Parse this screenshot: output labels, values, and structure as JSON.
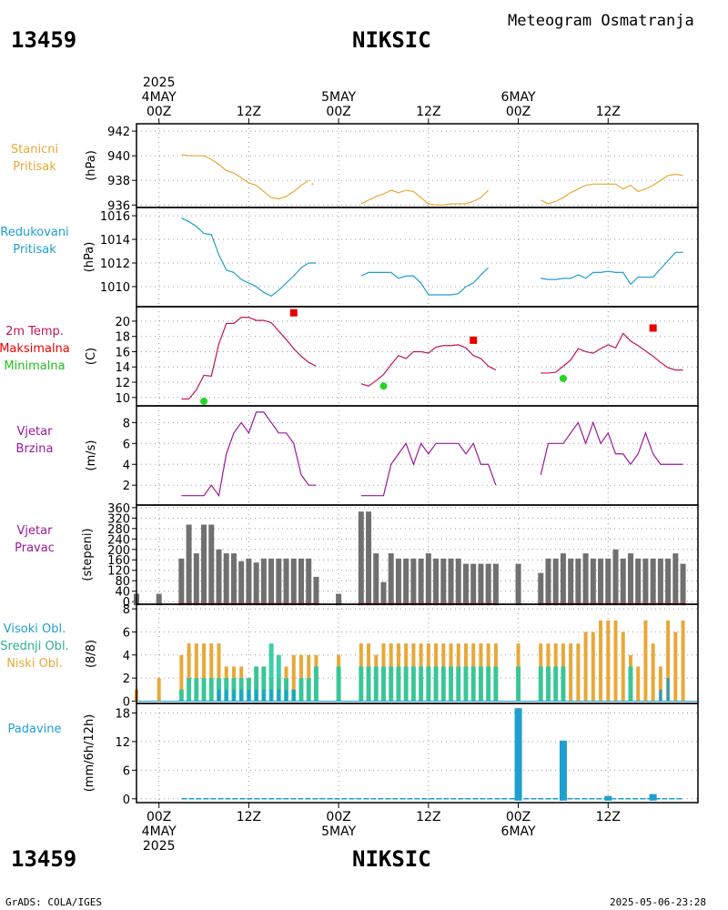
{
  "header": {
    "station_id": "13459",
    "station_name": "NIKSIC",
    "meteogram_title": "Meteogram Osmatranja"
  },
  "footer": {
    "station_id": "13459",
    "station_name": "NIKSIC",
    "credit": "GrADS: COLA/IGES",
    "timestamp": "2025-05-06-23:28"
  },
  "time_axis": {
    "top_labels": [
      {
        "hour": 0,
        "lines": [
          "2025",
          "4MAY",
          "00Z"
        ]
      },
      {
        "hour": 12,
        "lines": [
          "12Z"
        ]
      },
      {
        "hour": 24,
        "lines": [
          "5MAY",
          "00Z"
        ]
      },
      {
        "hour": 36,
        "lines": [
          "12Z"
        ]
      },
      {
        "hour": 48,
        "lines": [
          "6MAY",
          "00Z"
        ]
      },
      {
        "hour": 60,
        "lines": [
          "12Z"
        ]
      }
    ],
    "bottom_labels": [
      {
        "hour": 0,
        "lines": [
          "00Z",
          "4MAY",
          "2025"
        ]
      },
      {
        "hour": 12,
        "lines": [
          "12Z"
        ]
      },
      {
        "hour": 24,
        "lines": [
          "00Z",
          "5MAY"
        ]
      },
      {
        "hour": 36,
        "lines": [
          "12Z"
        ]
      },
      {
        "hour": 48,
        "lines": [
          "00Z",
          "6MAY"
        ]
      },
      {
        "hour": 60,
        "lines": [
          "12Z"
        ]
      }
    ]
  },
  "colors": {
    "station_pressure": "#e8a838",
    "reduced_pressure": "#1e9fcf",
    "temperature": "#c0145a",
    "tmax": "#e80000",
    "tmin": "#22d622",
    "wind": "#9a189a",
    "direction_bar": "#707070",
    "high_cloud": "#1e9fcf",
    "mid_cloud": "#28c8a0",
    "low_cloud": "#e8a838",
    "precip": "#1e9fcf"
  },
  "panels": {
    "station_pressure": {
      "labels": [
        "Stanicni",
        "Pritisak"
      ],
      "unit": "(hPa)"
    },
    "reduced_pressure": {
      "labels": [
        "Redukovani",
        "Pritisak"
      ],
      "unit": "(hPa)"
    },
    "temperature": {
      "labels": [
        "2m Temp.",
        "Maksimalna",
        "Minimalna"
      ],
      "unit": "(C)"
    },
    "wind_speed": {
      "labels": [
        "Vjetar",
        "Brzina"
      ],
      "unit": "(m/s)"
    },
    "wind_dir": {
      "labels": [
        "Vjetar",
        "Pravac"
      ],
      "unit": "(stepeni)"
    },
    "clouds": {
      "labels": [
        "Visoki Obl.",
        "Srednji Obl.",
        "Niski Obl."
      ],
      "unit": "(8/8)"
    },
    "precip": {
      "labels": [
        "Padavine"
      ],
      "unit": "(mm/6h/12h)"
    }
  },
  "chart_data": [
    {
      "type": "line",
      "id": "station_pressure",
      "title": "Stanicni Pritisak",
      "ylabel": "(hPa)",
      "ylim": [
        935.8,
        942.6
      ],
      "yticks": [
        936,
        938,
        940,
        942
      ],
      "segments": [
        {
          "x": [
            3,
            4,
            5,
            6,
            7,
            8,
            9,
            10,
            11,
            12,
            13,
            14,
            15,
            16,
            17,
            18,
            19,
            20
          ],
          "y": [
            940.1,
            940.0,
            940.0,
            940.0,
            939.7,
            939.3,
            938.8,
            938.6,
            938.2,
            937.8,
            937.6,
            937.1,
            936.6,
            936.5,
            936.7,
            937.1,
            937.6,
            938.0
          ]
        },
        {
          "x": [
            20.5
          ],
          "y": [
            937.7
          ]
        },
        {
          "x": [
            27,
            28,
            29,
            30,
            31,
            32,
            33,
            34,
            35,
            36,
            37,
            38,
            39,
            40,
            41,
            42,
            43,
            44
          ],
          "y": [
            936.1,
            936.4,
            936.7,
            936.9,
            937.2,
            937.0,
            937.2,
            937.1,
            936.6,
            936.1,
            936.0,
            936.0,
            936.1,
            936.1,
            936.1,
            936.3,
            936.6,
            937.2
          ]
        },
        {
          "x": [
            51,
            52,
            53,
            54,
            55,
            56,
            57,
            58,
            59,
            60,
            61,
            62,
            63,
            64,
            65,
            66,
            67,
            68,
            69,
            70
          ],
          "y": [
            936.4,
            936.1,
            936.3,
            936.6,
            937.0,
            937.3,
            937.6,
            937.7,
            937.7,
            937.7,
            937.7,
            937.3,
            937.6,
            937.1,
            937.3,
            937.6,
            938.0,
            938.4,
            938.5,
            938.4
          ]
        }
      ]
    },
    {
      "type": "line",
      "id": "reduced_pressure",
      "title": "Redukovani Pritisak",
      "ylabel": "(hPa)",
      "ylim": [
        1008.3,
        1016.7
      ],
      "yticks": [
        1010,
        1012,
        1014,
        1016
      ],
      "segments": [
        {
          "x": [
            3,
            4,
            5,
            6,
            7,
            8,
            9,
            10,
            11,
            12,
            13,
            14,
            15,
            16,
            17,
            18,
            19,
            20,
            21
          ],
          "y": [
            1015.8,
            1015.5,
            1015.1,
            1014.5,
            1014.4,
            1012.7,
            1011.4,
            1011.2,
            1010.6,
            1010.3,
            1010.0,
            1009.5,
            1009.2,
            1009.7,
            1010.3,
            1010.9,
            1011.6,
            1012.0,
            1012.0
          ]
        },
        {
          "x": [
            27,
            28,
            29,
            30,
            31,
            32,
            33,
            34,
            35,
            36,
            37,
            38,
            39,
            40,
            41,
            42,
            43,
            44
          ],
          "y": [
            1010.9,
            1011.2,
            1011.2,
            1011.2,
            1011.2,
            1010.7,
            1010.9,
            1010.9,
            1010.3,
            1009.3,
            1009.3,
            1009.3,
            1009.3,
            1009.4,
            1010.0,
            1010.3,
            1011.0,
            1011.6
          ]
        },
        {
          "x": [
            51,
            52,
            53,
            54,
            55,
            56,
            57,
            58,
            59,
            60,
            61,
            62,
            63,
            64,
            65,
            66,
            67,
            68,
            69,
            70
          ],
          "y": [
            1010.7,
            1010.6,
            1010.6,
            1010.7,
            1010.7,
            1011.0,
            1010.7,
            1011.2,
            1011.2,
            1011.3,
            1011.2,
            1011.2,
            1010.2,
            1010.8,
            1010.8,
            1010.8,
            1011.5,
            1012.2,
            1012.9,
            1012.9
          ]
        }
      ]
    },
    {
      "type": "line",
      "id": "temperature",
      "title": "2m Temp. Maksimalna Minimalna",
      "ylabel": "(C)",
      "ylim": [
        8.9,
        21.9
      ],
      "yticks": [
        10,
        12,
        14,
        16,
        18,
        20
      ],
      "segments": [
        {
          "x": [
            3,
            4,
            5,
            6,
            7,
            8,
            9,
            10,
            11,
            12,
            13,
            14,
            15,
            16,
            17,
            18,
            19,
            20,
            21
          ],
          "y": [
            9.8,
            9.8,
            11.0,
            12.9,
            12.8,
            17.0,
            19.7,
            19.7,
            20.5,
            20.5,
            20.1,
            20.1,
            19.8,
            18.7,
            17.6,
            16.4,
            15.4,
            14.6,
            14.1
          ]
        },
        {
          "x": [
            27,
            28,
            29,
            30,
            31,
            32,
            33,
            34,
            35,
            36,
            37,
            38,
            39,
            40,
            41,
            42,
            43,
            44,
            45
          ],
          "y": [
            11.8,
            11.5,
            12.2,
            13.0,
            14.3,
            15.5,
            15.1,
            16.0,
            16.0,
            15.8,
            16.6,
            16.8,
            16.8,
            16.9,
            16.5,
            15.5,
            15.1,
            14.1,
            13.6
          ]
        },
        {
          "x": [
            51,
            52,
            53,
            54,
            55,
            56,
            57,
            58,
            59,
            60,
            61,
            62,
            63,
            64,
            65,
            66,
            67,
            68,
            69,
            70
          ],
          "y": [
            13.2,
            13.2,
            13.3,
            14.1,
            14.9,
            16.4,
            16.0,
            15.8,
            16.4,
            16.9,
            16.5,
            18.4,
            17.4,
            16.8,
            16.1,
            15.4,
            14.6,
            13.9,
            13.6,
            13.6
          ]
        }
      ],
      "tmax": {
        "x": [
          18,
          42,
          66
        ],
        "y": [
          21.1,
          17.5,
          19.1
        ]
      },
      "tmin": {
        "x": [
          6,
          30,
          54
        ],
        "y": [
          9.5,
          11.5,
          12.5
        ]
      }
    },
    {
      "type": "line",
      "id": "wind_speed",
      "title": "Vjetar Brzina",
      "ylabel": "(m/s)",
      "ylim": [
        0.1,
        9.6
      ],
      "yticks": [
        2,
        4,
        6,
        8
      ],
      "segments": [
        {
          "x": [
            3,
            4,
            5,
            6,
            7,
            8,
            9,
            10,
            11,
            12,
            13,
            14,
            15,
            16,
            17,
            18,
            19,
            20,
            21
          ],
          "y": [
            1,
            1,
            1,
            1,
            2,
            1,
            5,
            7,
            8,
            7,
            9,
            9,
            8,
            7,
            7,
            6,
            3,
            2,
            2
          ]
        },
        {
          "x": [
            27,
            28,
            29,
            30,
            31,
            32,
            33,
            34,
            35,
            36,
            37,
            38,
            39,
            40,
            41,
            42,
            43,
            44,
            45
          ],
          "y": [
            1,
            1,
            1,
            1,
            4,
            5,
            6,
            4,
            6,
            5,
            6,
            6,
            6,
            6,
            5,
            6,
            4,
            4,
            2
          ]
        },
        {
          "x": [
            51,
            52,
            53,
            54,
            55,
            56,
            57,
            58,
            59,
            60,
            61,
            62,
            63,
            64,
            65,
            66,
            67,
            68,
            69,
            70
          ],
          "y": [
            3,
            6,
            6,
            6,
            7,
            8,
            6,
            8,
            6,
            7,
            5,
            5,
            4,
            5,
            7,
            5,
            4,
            4,
            4,
            4
          ]
        }
      ]
    },
    {
      "type": "bar",
      "id": "wind_dir",
      "title": "Vjetar Pravac",
      "ylabel": "(stepeni)",
      "ylim": [
        -10,
        370
      ],
      "yticks": [
        0,
        40,
        80,
        120,
        160,
        200,
        240,
        280,
        320,
        360
      ],
      "x": [
        -3,
        0,
        3,
        4,
        5,
        6,
        7,
        8,
        9,
        10,
        11,
        12,
        13,
        14,
        15,
        16,
        17,
        18,
        19,
        20,
        21,
        24,
        27,
        28,
        29,
        30,
        31,
        32,
        33,
        34,
        35,
        36,
        37,
        38,
        39,
        40,
        41,
        42,
        43,
        44,
        45,
        48,
        51,
        52,
        53,
        54,
        55,
        56,
        57,
        58,
        59,
        60,
        61,
        62,
        63,
        64,
        65,
        66,
        67,
        68,
        69,
        70
      ],
      "values": [
        30,
        30,
        165,
        295,
        185,
        295,
        295,
        200,
        185,
        185,
        155,
        165,
        150,
        165,
        165,
        165,
        165,
        165,
        165,
        165,
        95,
        30,
        345,
        345,
        185,
        75,
        185,
        165,
        165,
        165,
        165,
        185,
        165,
        165,
        165,
        165,
        145,
        145,
        145,
        145,
        145,
        145,
        110,
        165,
        165,
        185,
        165,
        165,
        185,
        165,
        165,
        165,
        200,
        165,
        185,
        165,
        165,
        165,
        165,
        165,
        185,
        145
      ]
    },
    {
      "type": "bar",
      "id": "clouds",
      "title": "Visoki Obl. Srednji Obl. Niski Obl.",
      "ylabel": "(8/8)",
      "ylim": [
        -0.2,
        8.4
      ],
      "yticks": [
        0,
        2,
        4,
        6,
        8
      ],
      "x": [
        -3,
        0,
        3,
        4,
        5,
        6,
        7,
        8,
        9,
        10,
        11,
        12,
        13,
        14,
        15,
        16,
        17,
        18,
        19,
        20,
        21,
        24,
        27,
        28,
        29,
        30,
        31,
        32,
        33,
        34,
        35,
        36,
        37,
        38,
        39,
        40,
        41,
        42,
        43,
        44,
        45,
        48,
        51,
        52,
        53,
        54,
        55,
        56,
        57,
        58,
        59,
        60,
        61,
        62,
        63,
        64,
        65,
        66,
        67,
        68,
        69,
        70
      ],
      "series": [
        {
          "name": "Niski Obl.",
          "values": [
            1,
            2,
            4,
            5,
            5,
            5,
            5,
            5,
            3,
            3,
            3,
            2,
            3,
            3,
            2,
            2,
            3,
            4,
            4,
            4,
            4,
            4,
            5,
            5,
            4,
            5,
            5,
            5,
            5,
            5,
            5,
            5,
            5,
            5,
            5,
            5,
            5,
            5,
            5,
            5,
            5,
            5,
            5,
            5,
            5,
            5,
            5,
            5,
            6,
            6,
            7,
            7,
            7,
            6,
            4,
            3,
            7,
            5,
            3,
            7,
            6,
            7
          ]
        },
        {
          "name": "Srednji Obl.",
          "values": [
            0,
            0,
            1,
            2,
            2,
            2,
            2,
            2,
            2,
            2,
            2,
            2,
            3,
            3,
            5,
            4,
            2,
            1,
            2,
            2,
            3,
            3,
            3,
            3,
            3,
            3,
            3,
            3,
            3,
            3,
            3,
            3,
            3,
            3,
            3,
            3,
            3,
            3,
            3,
            3,
            3,
            3,
            3,
            3,
            3,
            3,
            0,
            0,
            0,
            0,
            0,
            0,
            0,
            0,
            3,
            0,
            0,
            0,
            0,
            0,
            0,
            0
          ]
        },
        {
          "name": "Visoki Obl.",
          "values": [
            0,
            0,
            0,
            0,
            0,
            0,
            0,
            1,
            1,
            1,
            1,
            1,
            1,
            1,
            1,
            1,
            1,
            1,
            0,
            0,
            0,
            0,
            0,
            0,
            0,
            0,
            0,
            0,
            0,
            0,
            0,
            0,
            0,
            0,
            0,
            0,
            0,
            0,
            0,
            0,
            0,
            0,
            0,
            0,
            0,
            0,
            0,
            0,
            0,
            0,
            0,
            0,
            0,
            0,
            0,
            0,
            0,
            0,
            1,
            2,
            0,
            0
          ]
        }
      ]
    },
    {
      "type": "bar",
      "id": "precip",
      "title": "Padavine",
      "ylabel": "(mm/6h/12h)",
      "ylim": [
        -0.8,
        20
      ],
      "yticks": [
        0,
        6,
        12,
        18
      ],
      "x": [
        48,
        54,
        60,
        66
      ],
      "values": [
        19,
        12.2,
        0.6,
        1.0
      ]
    }
  ]
}
